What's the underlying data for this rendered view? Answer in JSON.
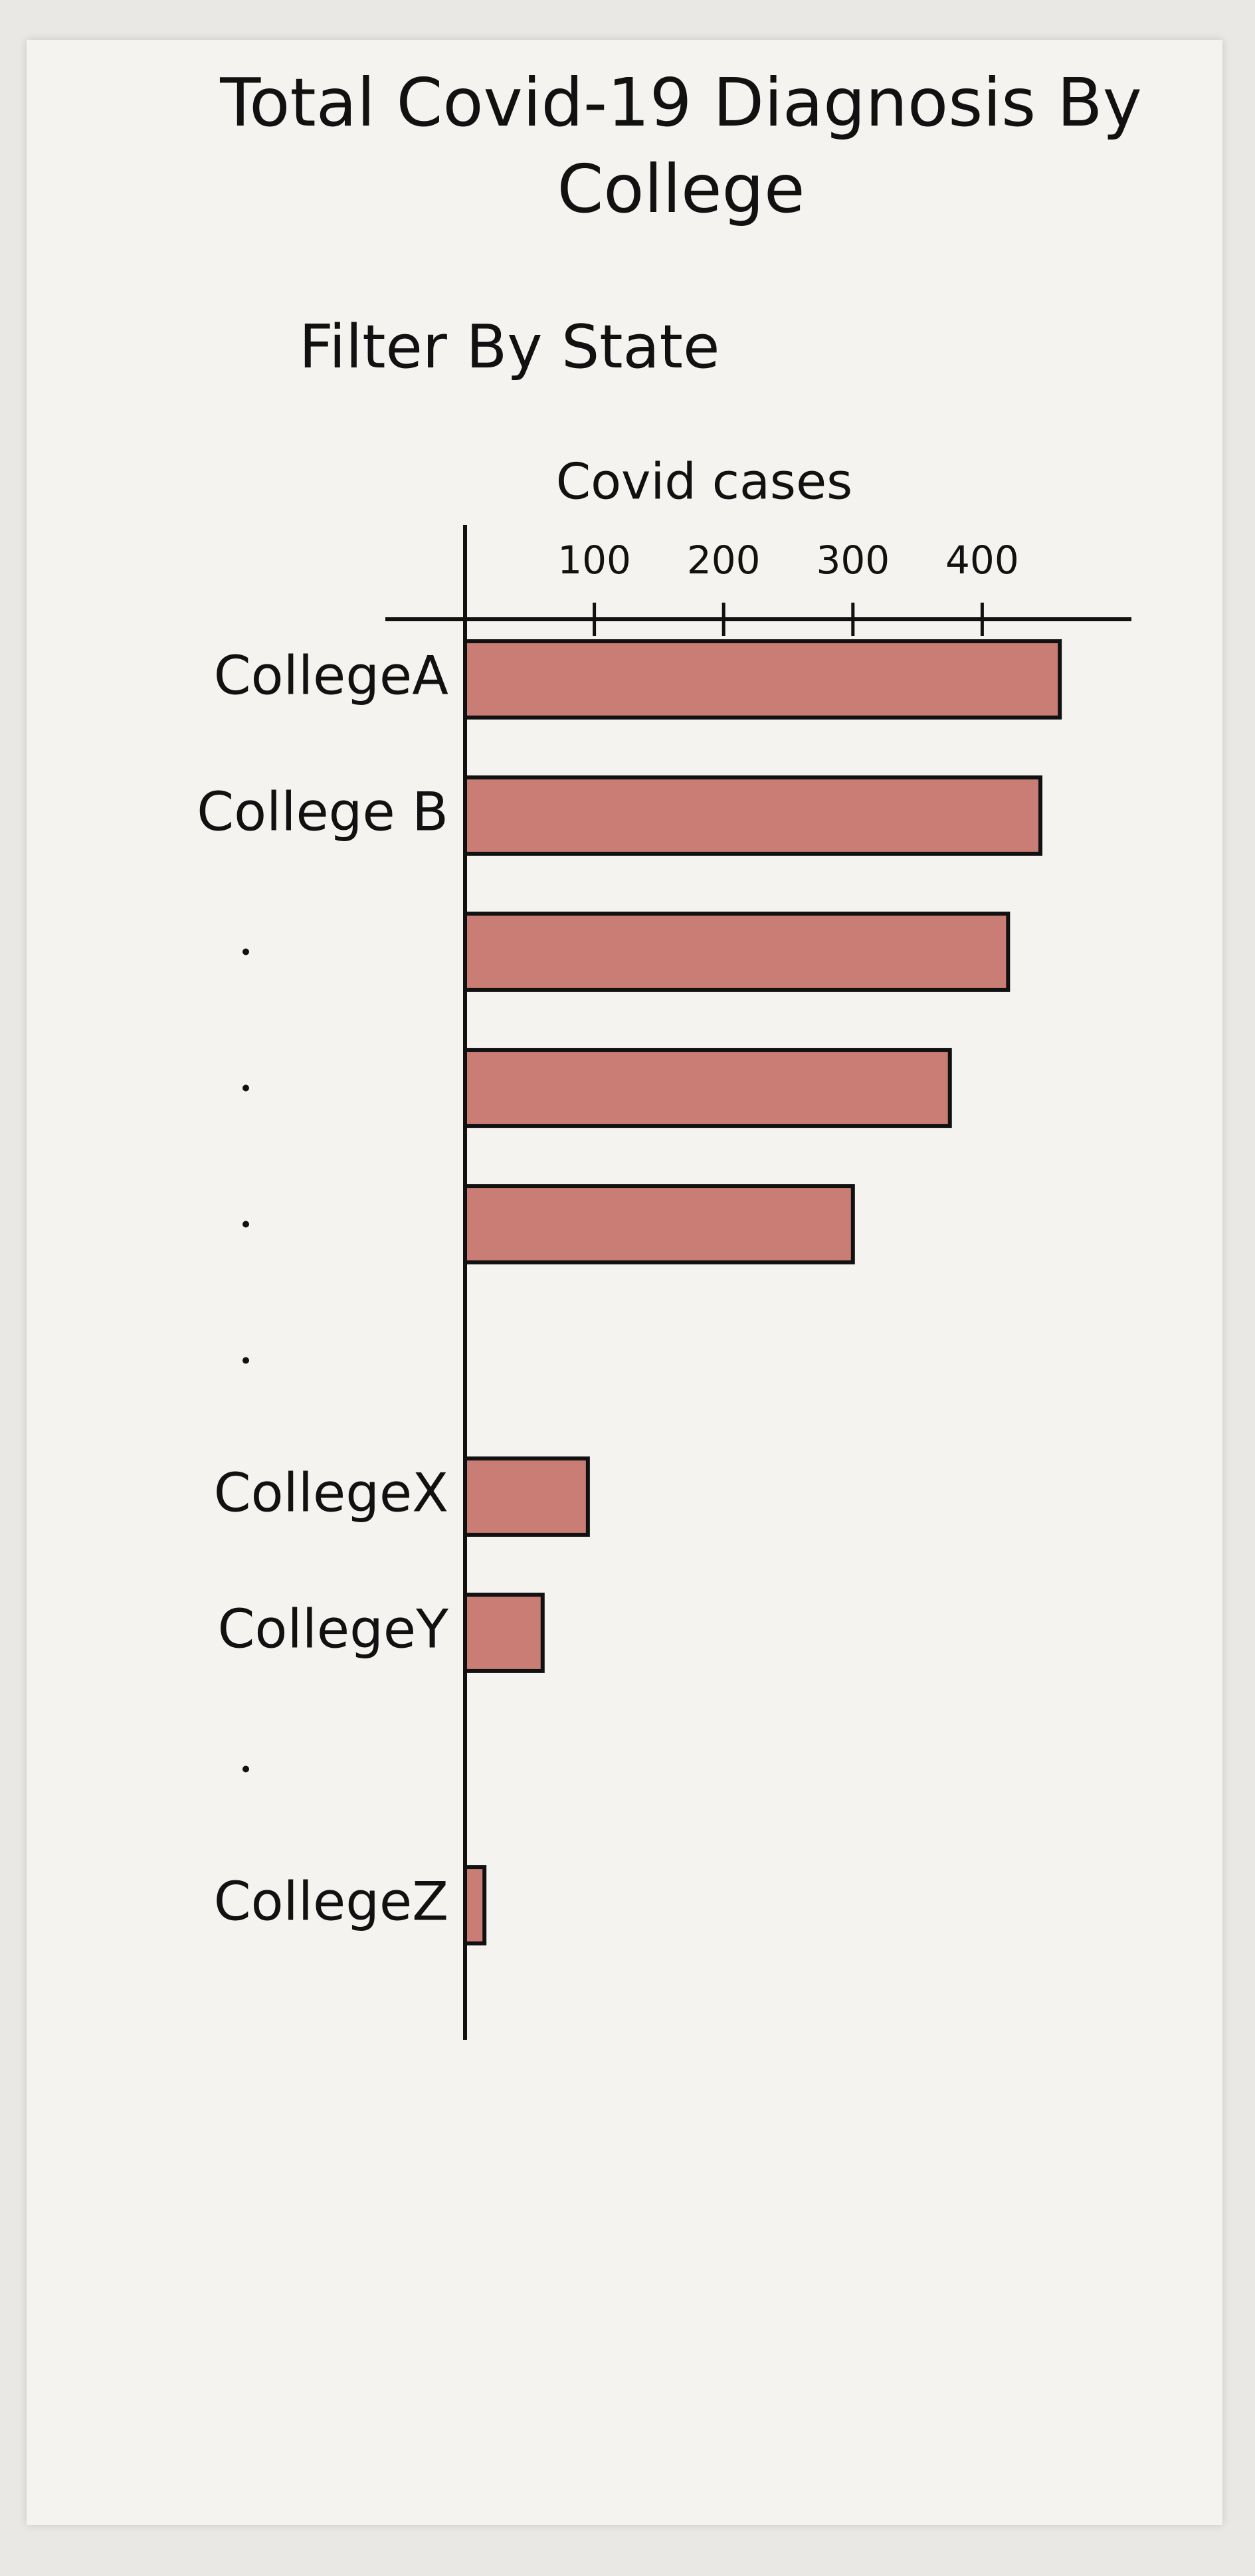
{
  "chart_data": {
    "type": "bar",
    "orientation": "horizontal",
    "title": "Total Covid-19 Diagnosis By College",
    "subtitle": "Filter By State",
    "x_label": "Covid cases",
    "categories": [
      "CollegeA",
      "College B",
      null,
      null,
      null,
      null,
      "CollegeX",
      "CollegeY",
      null,
      "CollegeZ"
    ],
    "values": [
      460,
      445,
      420,
      375,
      300,
      null,
      95,
      60,
      null,
      15
    ],
    "color": "#c97d74",
    "xlim": [
      0,
      500
    ],
    "xticks": [
      100,
      200,
      300,
      400
    ],
    "grid": false
  }
}
